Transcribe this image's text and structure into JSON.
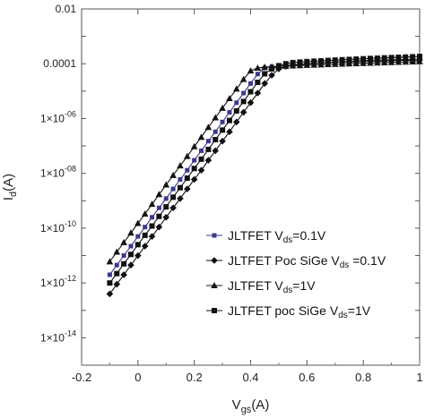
{
  "chart_data": {
    "type": "line",
    "title": "",
    "xlabel": {
      "main": "V",
      "sub": "gs",
      "tail": "(A)"
    },
    "ylabel": {
      "main": "I",
      "sub": "d",
      "tail": "(A)"
    },
    "xlim": [
      -0.2,
      1.0
    ],
    "ylim": [
      1e-15,
      0.01
    ],
    "yscale": "log",
    "grid": false,
    "legend_position": "center-right",
    "x_ticks": [
      -0.2,
      0,
      0.2,
      0.4,
      0.6,
      0.8,
      1
    ],
    "x_tick_labels": [
      "-0.2",
      "0",
      "0.2",
      "0.4",
      "0.6",
      "0.8",
      "1"
    ],
    "y_ticks": [
      {
        "value": 0.01,
        "base": "0.01",
        "exp": ""
      },
      {
        "value": 0.0001,
        "base": "0.0001",
        "exp": ""
      },
      {
        "value": 1e-06,
        "base": "1×10",
        "exp": "-06"
      },
      {
        "value": 1e-08,
        "base": "1×10",
        "exp": "-08"
      },
      {
        "value": 1e-10,
        "base": "1×10",
        "exp": "-10"
      },
      {
        "value": 1e-12,
        "base": "1×10",
        "exp": "-12"
      },
      {
        "value": 1e-14,
        "base": "1×10",
        "exp": "-14"
      }
    ],
    "x": [
      -0.1,
      -0.075,
      -0.05,
      -0.025,
      0,
      0.025,
      0.05,
      0.075,
      0.1,
      0.125,
      0.15,
      0.175,
      0.2,
      0.225,
      0.25,
      0.275,
      0.3,
      0.325,
      0.35,
      0.375,
      0.4,
      0.425,
      0.45,
      0.475,
      0.5,
      0.525,
      0.55,
      0.575,
      0.6,
      0.625,
      0.65,
      0.675,
      0.7,
      0.725,
      0.75,
      0.775,
      0.8,
      0.825,
      0.85,
      0.875,
      0.9,
      0.925,
      0.95,
      0.975,
      1.0
    ],
    "series": [
      {
        "name": "JLTFET Vds=0.1V",
        "legend": {
          "pre": "JLTFET V",
          "sub": "ds",
          "post": "=0.1V"
        },
        "color": "#3a3a8c",
        "marker": "square-small",
        "y": [
          2e-12,
          4.5e-12,
          1e-11,
          2.2e-11,
          5e-11,
          1.1e-10,
          2.5e-10,
          5.5e-10,
          1.2e-09,
          2.7e-09,
          6e-09,
          1.3e-08,
          3e-08,
          6.7e-08,
          1.5e-07,
          3.3e-07,
          7.5e-07,
          1.7e-06,
          3.8e-06,
          8.5e-06,
          1.9e-05,
          4.2e-05,
          7e-05,
          7.8e-05,
          8.2e-05,
          8.6e-05,
          9e-05,
          9.4e-05,
          9.8e-05,
          0.000102,
          0.000106,
          0.00011,
          0.000114,
          0.000118,
          0.000122,
          0.000126,
          0.00013,
          0.000133,
          0.000136,
          0.000138,
          0.00014,
          0.000142,
          0.000144,
          0.000146,
          0.000148
        ]
      },
      {
        "name": "JLTFET Poc SiGe Vds=0.1V",
        "legend": {
          "pre": "JLTFET Poc SiGe  V",
          "sub": "ds",
          "post": " =0.1V"
        },
        "color": "#111111",
        "marker": "diamond",
        "y": [
          4e-13,
          9e-13,
          2e-12,
          4.5e-12,
          1e-11,
          2.2e-11,
          5e-11,
          1.1e-10,
          2.5e-10,
          5.5e-10,
          1.2e-09,
          2.7e-09,
          6e-09,
          1.3e-08,
          3e-08,
          6.7e-08,
          1.5e-07,
          3.3e-07,
          7.5e-07,
          1.7e-06,
          3.8e-06,
          8.5e-06,
          1.9e-05,
          3.8e-05,
          6.5e-05,
          8e-05,
          9e-05,
          9.6e-05,
          0.0001,
          0.000104,
          0.000107,
          0.00011,
          0.000113,
          0.000115,
          0.000118,
          0.00012,
          0.000122,
          0.000124,
          0.000126,
          0.000128,
          0.00013,
          0.000132,
          0.000134,
          0.000136,
          0.000138
        ]
      },
      {
        "name": "JLTFET Vds=1V",
        "legend": {
          "pre": "JLTFET V",
          "sub": "ds",
          "post": "=1V"
        },
        "color": "#141414",
        "marker": "triangle",
        "y": [
          6e-12,
          1.35e-11,
          3e-11,
          6.7e-11,
          1.5e-10,
          3.3e-10,
          7.5e-10,
          1.7e-09,
          3.8e-09,
          8.5e-09,
          1.9e-08,
          4.2e-08,
          9.5e-08,
          2.1e-07,
          4.8e-07,
          1.08e-06,
          2.4e-06,
          5.4e-06,
          1.2e-05,
          2.7e-05,
          5.5e-05,
          7e-05,
          7.5e-05,
          7.8e-05,
          8e-05,
          8.2e-05,
          8.4e-05,
          8.6e-05,
          8.8e-05,
          9e-05,
          9.2e-05,
          9.4e-05,
          9.6e-05,
          9.8e-05,
          0.0001,
          0.000102,
          0.000104,
          0.000106,
          0.000108,
          0.00011,
          0.000112,
          0.000114,
          0.000116,
          0.000118,
          0.00012
        ]
      },
      {
        "name": "JLTFET poc SiGe Vds=1V",
        "legend": {
          "pre": "JLTFET poc SiGe V",
          "sub": "ds",
          "post": "=1V"
        },
        "color": "#111111",
        "marker": "square",
        "y": [
          1e-12,
          2.2e-12,
          5e-12,
          1.1e-11,
          2.5e-11,
          5.5e-11,
          1.2e-10,
          2.7e-10,
          6e-10,
          1.35e-09,
          3e-09,
          6.7e-09,
          1.5e-08,
          3.3e-08,
          7.5e-08,
          1.7e-07,
          3.8e-07,
          8.5e-07,
          1.9e-06,
          4.2e-06,
          9.5e-06,
          2.1e-05,
          4.3e-05,
          6.5e-05,
          8.5e-05,
          0.0001,
          0.00011,
          0.000115,
          0.00012,
          0.000124,
          0.000128,
          0.000132,
          0.000136,
          0.00014,
          0.000144,
          0.000148,
          0.000152,
          0.000156,
          0.00016,
          0.000164,
          0.000168,
          0.000172,
          0.000176,
          0.00018,
          0.000185
        ]
      }
    ]
  }
}
